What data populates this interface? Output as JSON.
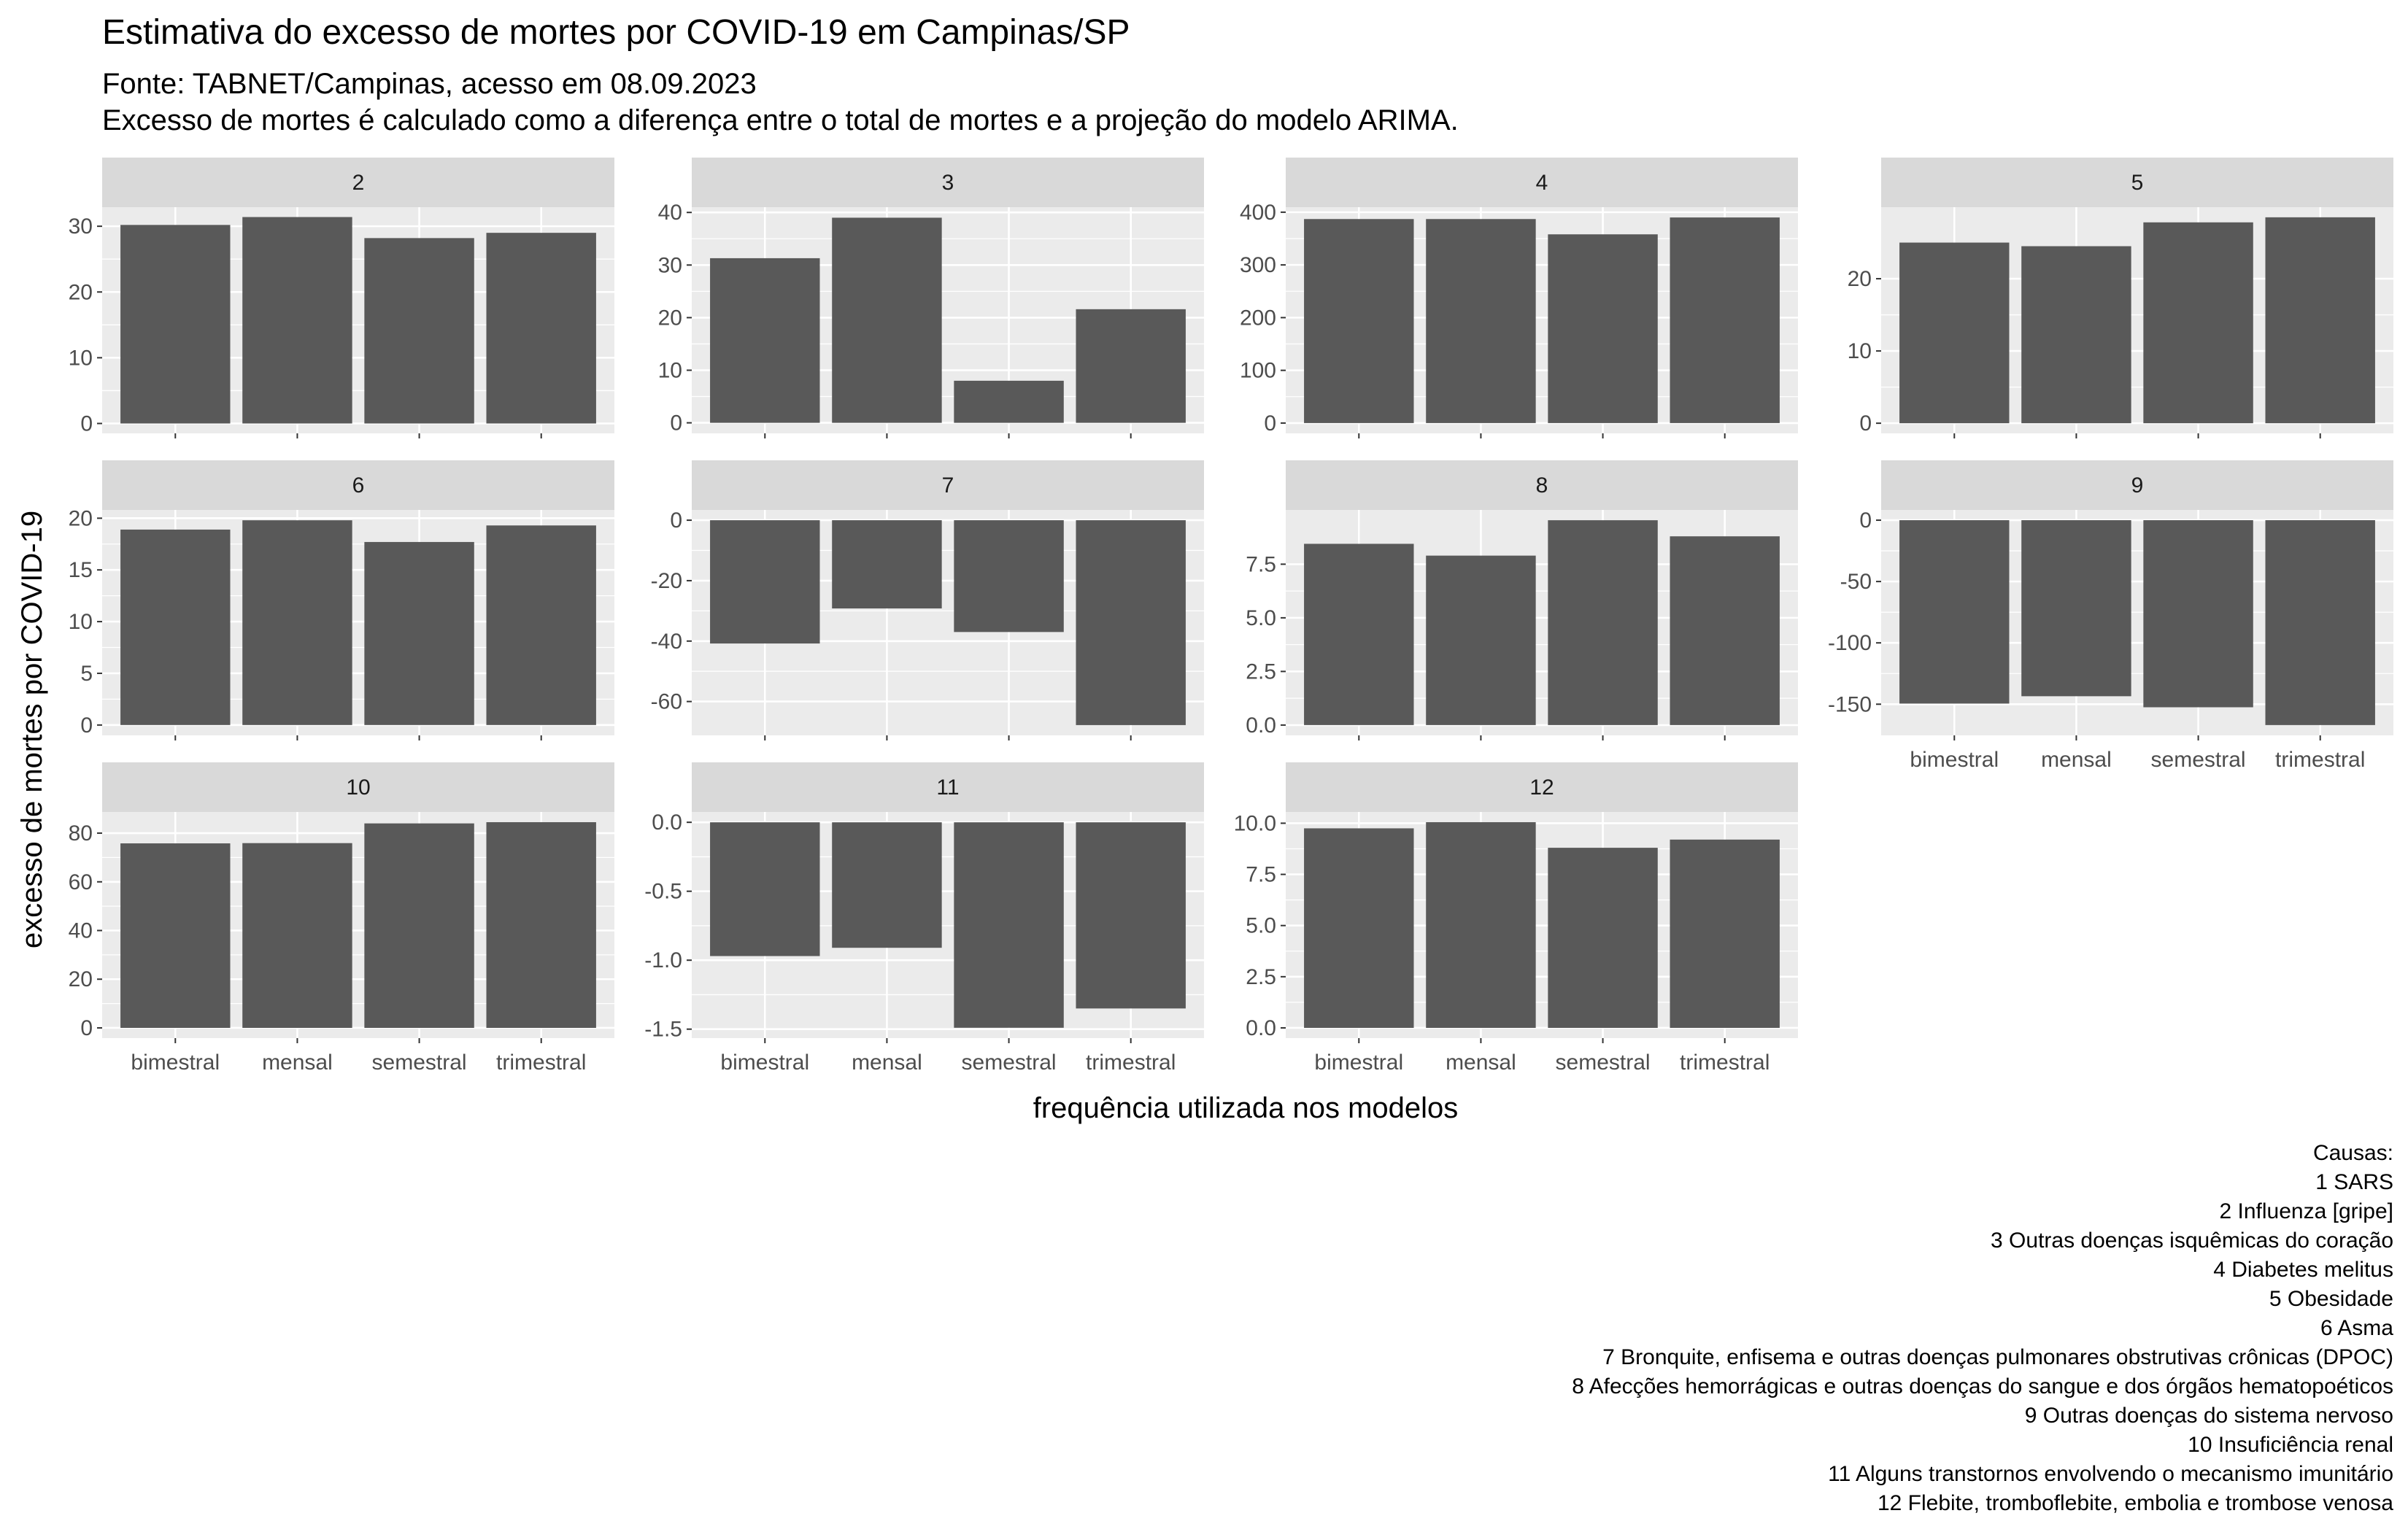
{
  "title": "Estimativa do excesso de mortes por COVID-19 em Campinas/SP",
  "subtitle_lines": [
    "Fonte: TABNET/Campinas, acesso em 08.09.2023",
    "Excesso de mortes é calculado como a diferença entre o total de mortes e a projeção do modelo ARIMA."
  ],
  "xlabel": "frequência utilizada nos modelos",
  "ylabel": "excesso de mortes por COVID-19",
  "caption_lines": [
    "Causas:",
    "1 SARS",
    "2 Influenza [gripe]",
    "3 Outras doenças isquêmicas do coração",
    "4 Diabetes melitus",
    "5 Obesidade",
    "6 Asma",
    "7 Bronquite, enfisema e outras doenças pulmonares obstrutivas crônicas (DPOC)",
    "8 Afecções hemorrágicas e outras doenças do sangue e dos órgãos hematopoéticos",
    "9 Outras doenças do sistema nervoso",
    "10 Insuficiência renal",
    "11 Alguns transtornos envolvendo o mecanismo imunitário",
    "12 Flebite, tromboflebite, embolia e trombose venosa"
  ],
  "colors": {
    "bar": "#595959",
    "panel": "#ebebeb",
    "strip": "#d9d9d9",
    "grid": "#ffffff"
  },
  "chart_data": {
    "type": "bar",
    "facet": true,
    "categories": [
      "bimestral",
      "mensal",
      "semestral",
      "trimestral"
    ],
    "panels": [
      {
        "label": "2",
        "values": [
          30.2,
          31.4,
          28.2,
          29.0
        ],
        "ylim": [
          -1.5,
          32.9
        ],
        "ticks": [
          {
            "v": 0,
            "t": "0"
          },
          {
            "v": 10,
            "t": "10"
          },
          {
            "v": 20,
            "t": "20"
          },
          {
            "v": 30,
            "t": "30"
          }
        ]
      },
      {
        "label": "3",
        "values": [
          31.3,
          39.0,
          8.0,
          21.6
        ],
        "ylim": [
          -2.0,
          41.0
        ],
        "ticks": [
          {
            "v": 0,
            "t": "0"
          },
          {
            "v": 10,
            "t": "10"
          },
          {
            "v": 20,
            "t": "20"
          },
          {
            "v": 30,
            "t": "30"
          },
          {
            "v": 40,
            "t": "40"
          }
        ]
      },
      {
        "label": "4",
        "values": [
          387,
          387,
          358,
          390
        ],
        "ylim": [
          -19.5,
          409.5
        ],
        "ticks": [
          {
            "v": 0,
            "t": "0"
          },
          {
            "v": 100,
            "t": "100"
          },
          {
            "v": 200,
            "t": "200"
          },
          {
            "v": 300,
            "t": "300"
          },
          {
            "v": 400,
            "t": "400"
          }
        ]
      },
      {
        "label": "5",
        "values": [
          25.0,
          24.5,
          27.8,
          28.5
        ],
        "ylim": [
          -1.4,
          29.9
        ],
        "ticks": [
          {
            "v": 0,
            "t": "0"
          },
          {
            "v": 10,
            "t": "10"
          },
          {
            "v": 20,
            "t": "20"
          }
        ]
      },
      {
        "label": "6",
        "values": [
          18.9,
          19.8,
          17.7,
          19.3
        ],
        "ylim": [
          -1.0,
          20.8
        ],
        "ticks": [
          {
            "v": 0,
            "t": "0"
          },
          {
            "v": 5,
            "t": "5"
          },
          {
            "v": 10,
            "t": "10"
          },
          {
            "v": 15,
            "t": "15"
          },
          {
            "v": 20,
            "t": "20"
          }
        ]
      },
      {
        "label": "7",
        "values": [
          -40.8,
          -29.2,
          -37.0,
          -67.8
        ],
        "ylim": [
          -71.2,
          3.4
        ],
        "ticks": [
          {
            "v": 0,
            "t": "0"
          },
          {
            "v": -20,
            "t": "-20"
          },
          {
            "v": -40,
            "t": "-40"
          },
          {
            "v": -60,
            "t": "-60"
          }
        ]
      },
      {
        "label": "8",
        "values": [
          8.45,
          7.9,
          9.55,
          8.8
        ],
        "ylim": [
          -0.48,
          10.03
        ],
        "ticks": [
          {
            "v": 0,
            "t": "0.0"
          },
          {
            "v": 2.5,
            "t": "2.5"
          },
          {
            "v": 5,
            "t": "5.0"
          },
          {
            "v": 7.5,
            "t": "7.5"
          }
        ]
      },
      {
        "label": "9",
        "values": [
          -149.5,
          -143.5,
          -152.5,
          -167.0
        ],
        "ylim": [
          -175.4,
          8.35
        ],
        "ticks": [
          {
            "v": 0,
            "t": "0"
          },
          {
            "v": -50,
            "t": "-50"
          },
          {
            "v": -100,
            "t": "-100"
          },
          {
            "v": -150,
            "t": "-150"
          }
        ]
      },
      {
        "label": "10",
        "values": [
          75.8,
          75.9,
          84.0,
          84.5
        ],
        "ylim": [
          -4.2,
          88.7
        ],
        "ticks": [
          {
            "v": 0,
            "t": "0"
          },
          {
            "v": 20,
            "t": "20"
          },
          {
            "v": 40,
            "t": "40"
          },
          {
            "v": 60,
            "t": "60"
          },
          {
            "v": 80,
            "t": "80"
          }
        ]
      },
      {
        "label": "11",
        "values": [
          -0.97,
          -0.91,
          -1.49,
          -1.35
        ],
        "ylim": [
          -1.565,
          0.075
        ],
        "ticks": [
          {
            "v": 0,
            "t": "0.0"
          },
          {
            "v": -0.5,
            "t": "-0.5"
          },
          {
            "v": -1,
            "t": "-1.0"
          },
          {
            "v": -1.5,
            "t": "-1.5"
          }
        ]
      },
      {
        "label": "12",
        "values": [
          9.75,
          10.05,
          8.8,
          9.2
        ],
        "ylim": [
          -0.5,
          10.55
        ],
        "ticks": [
          {
            "v": 0,
            "t": "0.0"
          },
          {
            "v": 2.5,
            "t": "2.5"
          },
          {
            "v": 5,
            "t": "5.0"
          },
          {
            "v": 7.5,
            "t": "7.5"
          },
          {
            "v": 10,
            "t": "10.0"
          }
        ]
      }
    ]
  }
}
